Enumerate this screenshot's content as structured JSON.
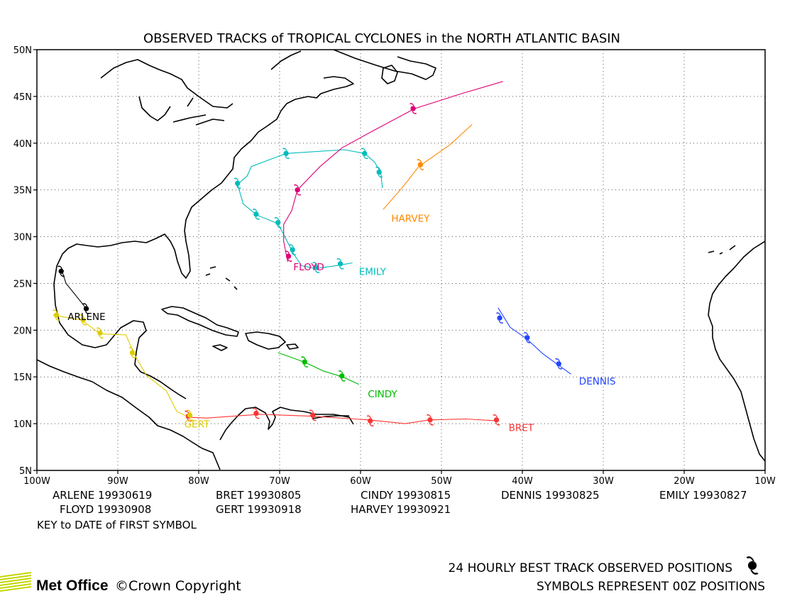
{
  "title": "OBSERVED TRACKS of TROPICAL CYCLONES in the NORTH ATLANTIC BASIN",
  "axes": {
    "lat_ticks": [
      "5N",
      "10N",
      "15N",
      "20N",
      "25N",
      "30N",
      "35N",
      "40N",
      "45N",
      "50N"
    ],
    "lon_ticks": [
      "100W",
      "90W",
      "80W",
      "70W",
      "60W",
      "50W",
      "40W",
      "30W",
      "20W",
      "10W"
    ],
    "lat_range": [
      5,
      50
    ],
    "lon_range": [
      -100,
      -10
    ],
    "grid": "dotted"
  },
  "storms": [
    {
      "name": "ARLENE",
      "color": "#000000",
      "label_pos": [
        -96.2,
        21.1
      ],
      "track": [
        [
          -97,
          26.6
        ],
        [
          -96.4,
          25
        ],
        [
          -95,
          23.5
        ],
        [
          -93.8,
          22.2
        ]
      ],
      "symbols": [
        [
          -97,
          26.3
        ],
        [
          -93.9,
          22.3
        ]
      ]
    },
    {
      "name": "BRET",
      "color": "#ff3333",
      "label_pos": [
        -41.7,
        9.2
      ],
      "track": [
        [
          -81.5,
          10.7
        ],
        [
          -79,
          10.6
        ],
        [
          -72.5,
          11
        ],
        [
          -66,
          10.8
        ],
        [
          -59,
          10.4
        ],
        [
          -54.5,
          10
        ],
        [
          -51.5,
          10.4
        ],
        [
          -47,
          10.5
        ],
        [
          -43,
          10.3
        ]
      ],
      "symbols": [
        [
          -81.3,
          10.8
        ],
        [
          -72.9,
          11.1
        ],
        [
          -65.9,
          10.9
        ],
        [
          -58.8,
          10.3
        ],
        [
          -51.4,
          10.4
        ],
        [
          -43.2,
          10.4
        ]
      ]
    },
    {
      "name": "CINDY",
      "color": "#00bb00",
      "label_pos": [
        -59.1,
        12.8
      ],
      "track": [
        [
          -70.2,
          17.6
        ],
        [
          -67,
          16.6
        ],
        [
          -64.5,
          15.6
        ],
        [
          -62.2,
          15
        ],
        [
          -60.2,
          14.2
        ]
      ],
      "symbols": [
        [
          -66.9,
          16.6
        ],
        [
          -62.3,
          15.1
        ]
      ]
    },
    {
      "name": "DENNIS",
      "color": "#2244ff",
      "label_pos": [
        -33,
        14.2
      ],
      "track": [
        [
          -43,
          22.4
        ],
        [
          -41.5,
          20.3
        ],
        [
          -39.5,
          19.1
        ],
        [
          -37.5,
          17.5
        ],
        [
          -35.6,
          16.3
        ],
        [
          -34,
          15.3
        ]
      ],
      "symbols": [
        [
          -42.8,
          21.3
        ],
        [
          -39.4,
          19.2
        ],
        [
          -35.5,
          16.4
        ]
      ]
    },
    {
      "name": "EMILY",
      "color": "#00bbbb",
      "label_pos": [
        -60.2,
        25.9
      ],
      "track": [
        [
          -61,
          27.2
        ],
        [
          -63,
          26.9
        ],
        [
          -65.6,
          26.6
        ],
        [
          -67.3,
          26.9
        ],
        [
          -68.3,
          28.2
        ],
        [
          -70.2,
          31.4
        ],
        [
          -72.8,
          32.3
        ],
        [
          -74.5,
          33.5
        ],
        [
          -75.2,
          35.6
        ],
        [
          -74,
          36.5
        ],
        [
          -73.5,
          37.5
        ],
        [
          -69.2,
          38.9
        ],
        [
          -62,
          39.3
        ],
        [
          -59.5,
          38.9
        ],
        [
          -58.3,
          38
        ],
        [
          -57.5,
          36.9
        ],
        [
          -57.3,
          35.2
        ]
      ],
      "symbols": [
        [
          -62.5,
          27.1
        ],
        [
          -65.5,
          26.7
        ],
        [
          -68.4,
          28.6
        ],
        [
          -70.2,
          31.5
        ],
        [
          -72.9,
          32.4
        ],
        [
          -75.2,
          35.7
        ],
        [
          -69.2,
          38.9
        ],
        [
          -59.5,
          38.9
        ],
        [
          -57.7,
          36.9
        ]
      ]
    },
    {
      "name": "FLOYD",
      "color": "#dd0077",
      "label_pos": [
        -68.3,
        26.4
      ],
      "track": [
        [
          -69,
          27.3
        ],
        [
          -69.5,
          29.5
        ],
        [
          -69.5,
          31.3
        ],
        [
          -68.5,
          32.8
        ],
        [
          -67.8,
          35
        ],
        [
          -65,
          37.5
        ],
        [
          -62.3,
          39.5
        ],
        [
          -58.5,
          41.3
        ],
        [
          -53.3,
          43.7
        ],
        [
          -47.5,
          45.3
        ],
        [
          -42.4,
          46.6
        ]
      ],
      "symbols": [
        [
          -68.9,
          27.9
        ],
        [
          -67.8,
          35
        ],
        [
          -53.5,
          43.7
        ]
      ]
    },
    {
      "name": "GERT",
      "color": "#ddcc00",
      "label_pos": [
        -81.8,
        9.6
      ],
      "track": [
        [
          -98,
          21.6
        ],
        [
          -94.5,
          21.1
        ],
        [
          -92.2,
          19.6
        ],
        [
          -89,
          19.5
        ],
        [
          -88,
          17.5
        ],
        [
          -86.5,
          15.2
        ],
        [
          -84,
          13.5
        ],
        [
          -82.7,
          11.3
        ],
        [
          -81.5,
          10.8
        ]
      ],
      "symbols": [
        [
          -97.6,
          21.6
        ],
        [
          -94.3,
          21.1
        ],
        [
          -92.2,
          19.7
        ],
        [
          -88.2,
          17.6
        ],
        [
          -81.1,
          10.9
        ]
      ]
    },
    {
      "name": "HARVEY",
      "color": "#ff8800",
      "label_pos": [
        -56.2,
        31.6
      ],
      "track": [
        [
          -57.2,
          32.9
        ],
        [
          -54.8,
          35.3
        ],
        [
          -52.8,
          37.5
        ],
        [
          -49,
          39.8
        ],
        [
          -46.2,
          42
        ]
      ],
      "symbols": [
        [
          -52.6,
          37.7
        ]
      ]
    }
  ],
  "key": {
    "entries": [
      {
        "name": "ARLENE",
        "date": "19930619"
      },
      {
        "name": "BRET",
        "date": "19930805"
      },
      {
        "name": "CINDY",
        "date": "19930815"
      },
      {
        "name": "DENNIS",
        "date": "19930825"
      },
      {
        "name": "EMILY",
        "date": "19930827"
      },
      {
        "name": "FLOYD",
        "date": "19930908"
      },
      {
        "name": "GERT",
        "date": "19930918"
      },
      {
        "name": "HARVEY",
        "date": "19930921"
      }
    ],
    "caption": "KEY to DATE of FIRST SYMBOL"
  },
  "footer": {
    "line1": "24 HOURLY BEST TRACK OBSERVED POSITIONS",
    "line2": "SYMBOLS REPRESENT 00Z POSITIONS",
    "brand": "Met Office",
    "copyright": "©Crown Copyright",
    "symbol_icon": "hurricane-symbol-icon",
    "brand_color": "#c2d600"
  }
}
